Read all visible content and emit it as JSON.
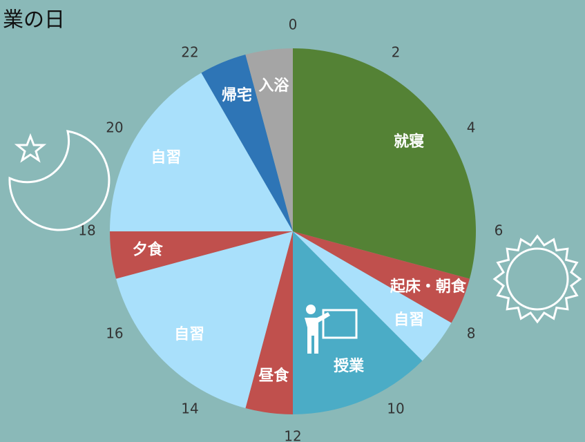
{
  "chart_data": {
    "type": "pie",
    "title": "業の日",
    "categories": [
      "就寝",
      "起床・朝食",
      "自習",
      "授業",
      "昼食",
      "自習",
      "夕食",
      "自習",
      "帰宅",
      "入浴"
    ],
    "values": [
      7,
      1,
      1,
      3,
      1,
      4,
      1,
      4,
      1,
      1
    ],
    "colors": [
      "#548235",
      "#c0504d",
      "#a9e0fb",
      "#4bacc6",
      "#c0504d",
      "#a9e0fb",
      "#c0504d",
      "#a9e0fb",
      "#2e75b6",
      "#a5a5a5"
    ],
    "hour_ticks": [
      0,
      2,
      4,
      6,
      8,
      10,
      12,
      14,
      16,
      18,
      20,
      22
    ]
  }
}
